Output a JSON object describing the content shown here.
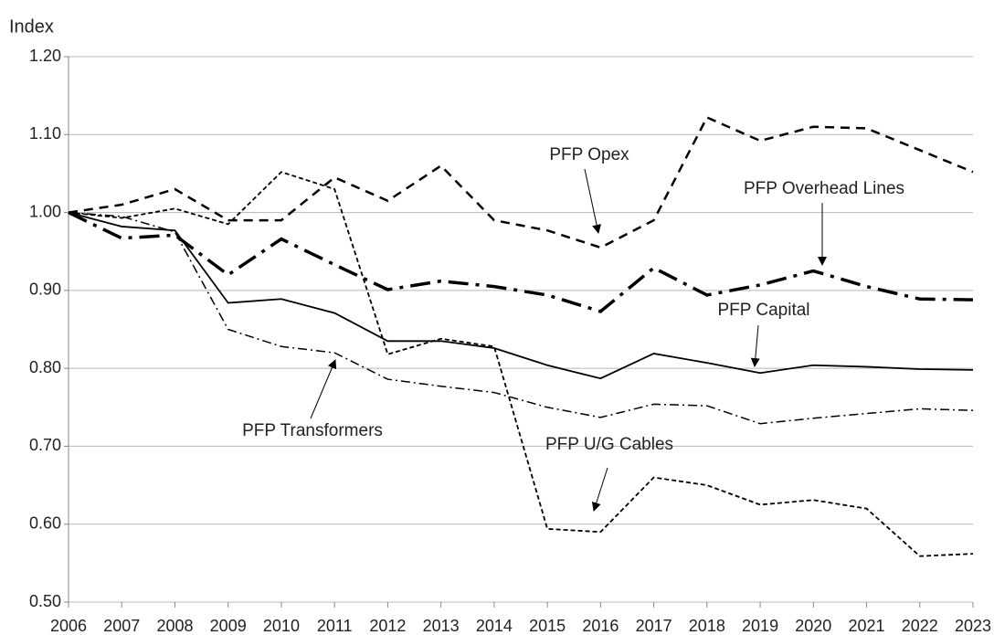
{
  "chart_data": {
    "type": "line",
    "y_label": "Index",
    "x": [
      "2006",
      "2007",
      "2008",
      "2009",
      "2010",
      "2011",
      "2012",
      "2013",
      "2014",
      "2015",
      "2016",
      "2017",
      "2018",
      "2019",
      "2020",
      "2021",
      "2022",
      "2023"
    ],
    "series": [
      {
        "name": "PFP Opex",
        "color": "#000000",
        "values": [
          1.0,
          1.01,
          1.03,
          0.99,
          0.99,
          1.045,
          1.015,
          1.06,
          0.99,
          0.977,
          0.955,
          0.99,
          1.122,
          1.092,
          1.11,
          1.108,
          1.08,
          1.052
        ]
      },
      {
        "name": "PFP Overhead Lines",
        "color": "#000000",
        "values": [
          1.0,
          0.967,
          0.971,
          0.92,
          0.966,
          0.933,
          0.901,
          0.912,
          0.905,
          0.894,
          0.873,
          0.929,
          0.894,
          0.907,
          0.925,
          0.905,
          0.889,
          0.888
        ]
      },
      {
        "name": "PFP Capital",
        "color": "#000000",
        "values": [
          1.0,
          0.982,
          0.977,
          0.884,
          0.889,
          0.871,
          0.835,
          0.835,
          0.826,
          0.804,
          0.787,
          0.819,
          0.807,
          0.794,
          0.804,
          0.802,
          0.799,
          0.798
        ]
      },
      {
        "name": "PFP Transformers",
        "color": "#000000",
        "values": [
          1.0,
          0.995,
          0.975,
          0.85,
          0.828,
          0.82,
          0.786,
          0.777,
          0.769,
          0.75,
          0.737,
          0.754,
          0.752,
          0.729,
          0.736,
          0.742,
          0.748,
          0.746
        ]
      },
      {
        "name": "PFP U/G Cables",
        "color": "#000000",
        "values": [
          1.0,
          0.993,
          1.005,
          0.985,
          1.052,
          1.03,
          0.818,
          0.838,
          0.828,
          0.594,
          0.59,
          0.66,
          0.65,
          0.625,
          0.631,
          0.62,
          0.559,
          0.562
        ]
      }
    ],
    "ylim": [
      0.5,
      1.2
    ],
    "yticks": [
      {
        "value": 0.5,
        "label": "0.50"
      },
      {
        "value": 0.6,
        "label": "0.60"
      },
      {
        "value": 0.7,
        "label": "0.70"
      },
      {
        "value": 0.8,
        "label": "0.80"
      },
      {
        "value": 0.9,
        "label": "0.90"
      },
      {
        "value": 1.0,
        "label": "1.00"
      },
      {
        "value": 1.1,
        "label": "1.10"
      },
      {
        "value": 1.2,
        "label": "1.20"
      }
    ],
    "grid": true
  }
}
